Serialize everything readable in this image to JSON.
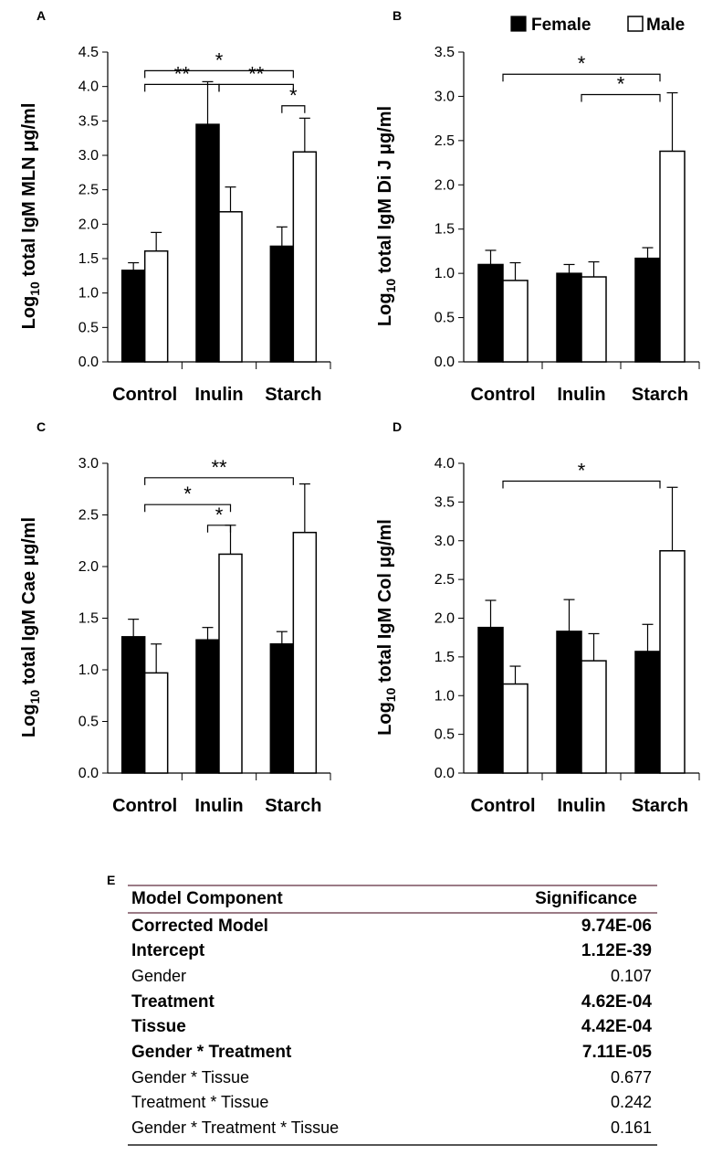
{
  "legend": {
    "female": "Female",
    "male": "Male",
    "female_color": "#000000",
    "male_color": "#ffffff"
  },
  "chart_data": [
    {
      "panel": "A",
      "type": "bar",
      "categories": [
        "Control",
        "Inulin",
        "Starch"
      ],
      "series": [
        {
          "name": "Female",
          "values": [
            1.33,
            3.45,
            1.68
          ],
          "errors": [
            0.11,
            0.62,
            0.28
          ]
        },
        {
          "name": "Male",
          "values": [
            1.61,
            2.18,
            3.05
          ],
          "errors": [
            0.27,
            0.36,
            0.49
          ]
        }
      ],
      "ylabel_main": "Log",
      "ylabel_sub": "10",
      "ylabel_rest": " total IgM MLN μg/ml",
      "ylim": [
        0,
        4.5
      ],
      "ticks": [
        "0.0",
        "0.5",
        "1.0",
        "1.5",
        "2.0",
        "2.5",
        "3.0",
        "3.5",
        "4.0",
        "4.5"
      ],
      "significance": [
        {
          "from": [
            0,
            "mid"
          ],
          "to": [
            2,
            "mid"
          ],
          "y": 4.23,
          "label": "*"
        },
        {
          "from": [
            0,
            "mid"
          ],
          "to": [
            1,
            "mid"
          ],
          "y": 4.03,
          "label": "**"
        },
        {
          "from": [
            1,
            "mid"
          ],
          "to": [
            2,
            "mid"
          ],
          "y": 4.03,
          "label": "**"
        },
        {
          "from": [
            2,
            "f"
          ],
          "to": [
            2,
            "m"
          ],
          "y": 3.72,
          "label": "*"
        }
      ]
    },
    {
      "panel": "B",
      "type": "bar",
      "categories": [
        "Control",
        "Inulin",
        "Starch"
      ],
      "series": [
        {
          "name": "Female",
          "values": [
            1.1,
            1.0,
            1.17
          ],
          "errors": [
            0.16,
            0.1,
            0.12
          ]
        },
        {
          "name": "Male",
          "values": [
            0.92,
            0.96,
            2.38
          ],
          "errors": [
            0.2,
            0.17,
            0.66
          ]
        }
      ],
      "ylabel_main": "Log",
      "ylabel_sub": "10",
      "ylabel_rest": " total IgM Di J μg/ml",
      "ylim": [
        0,
        3.5
      ],
      "ticks": [
        "0.0",
        "0.5",
        "1.0",
        "1.5",
        "2.0",
        "2.5",
        "3.0",
        "3.5"
      ],
      "significance": [
        {
          "from": [
            0,
            "mid"
          ],
          "to": [
            2,
            "mid"
          ],
          "y": 3.25,
          "label": "*"
        },
        {
          "from": [
            1,
            "mid"
          ],
          "to": [
            2,
            "mid"
          ],
          "y": 3.02,
          "label": "*"
        }
      ]
    },
    {
      "panel": "C",
      "type": "bar",
      "categories": [
        "Control",
        "Inulin",
        "Starch"
      ],
      "series": [
        {
          "name": "Female",
          "values": [
            1.32,
            1.29,
            1.25
          ],
          "errors": [
            0.17,
            0.12,
            0.12
          ]
        },
        {
          "name": "Male",
          "values": [
            0.97,
            2.12,
            2.33
          ],
          "errors": [
            0.28,
            0.28,
            0.47
          ]
        }
      ],
      "ylabel_main": "Log",
      "ylabel_sub": "10",
      "ylabel_rest": " total IgM Cae μg/ml",
      "ylim": [
        0,
        3.0
      ],
      "ticks": [
        "0.0",
        "0.5",
        "1.0",
        "1.5",
        "2.0",
        "2.5",
        "3.0"
      ],
      "significance": [
        {
          "from": [
            0,
            "mid"
          ],
          "to": [
            2,
            "mid"
          ],
          "y": 2.86,
          "label": "**"
        },
        {
          "from": [
            0,
            "mid"
          ],
          "to": [
            1,
            "m"
          ],
          "y": 2.6,
          "label": "*"
        },
        {
          "from": [
            1,
            "f"
          ],
          "to": [
            1,
            "m"
          ],
          "y": 2.4,
          "label": "*"
        }
      ]
    },
    {
      "panel": "D",
      "type": "bar",
      "categories": [
        "Control",
        "Inulin",
        "Starch"
      ],
      "series": [
        {
          "name": "Female",
          "values": [
            1.88,
            1.83,
            1.57
          ],
          "errors": [
            0.35,
            0.41,
            0.35
          ]
        },
        {
          "name": "Male",
          "values": [
            1.15,
            1.45,
            2.87
          ],
          "errors": [
            0.23,
            0.35,
            0.82
          ]
        }
      ],
      "ylabel_main": "Log",
      "ylabel_sub": "10",
      "ylabel_rest": " total IgM Col μg/ml",
      "ylim": [
        0,
        4.0
      ],
      "ticks": [
        "0.0",
        "0.5",
        "1.0",
        "1.5",
        "2.0",
        "2.5",
        "3.0",
        "3.5",
        "4.0"
      ],
      "significance": [
        {
          "from": [
            0,
            "mid"
          ],
          "to": [
            2,
            "mid"
          ],
          "y": 3.77,
          "label": "*"
        }
      ]
    }
  ],
  "table": {
    "panel": "E",
    "headers": [
      "Model Component",
      "Significance"
    ],
    "rows": [
      {
        "component": "Corrected Model",
        "significance": "9.74E-06",
        "bold": true
      },
      {
        "component": "Intercept",
        "significance": "1.12E-39",
        "bold": true
      },
      {
        "component": "Gender",
        "significance": "0.107",
        "bold": false
      },
      {
        "component": "Treatment",
        "significance": "4.62E-04",
        "bold": true
      },
      {
        "component": "Tissue",
        "significance": "4.42E-04",
        "bold": true
      },
      {
        "component": "Gender * Treatment",
        "significance": "7.11E-05",
        "bold": true
      },
      {
        "component": "Gender * Tissue",
        "significance": "0.677",
        "bold": false
      },
      {
        "component": "Treatment * Tissue",
        "significance": "0.242",
        "bold": false
      },
      {
        "component": "Gender * Treatment * Tissue",
        "significance": "0.161",
        "bold": false
      }
    ]
  }
}
